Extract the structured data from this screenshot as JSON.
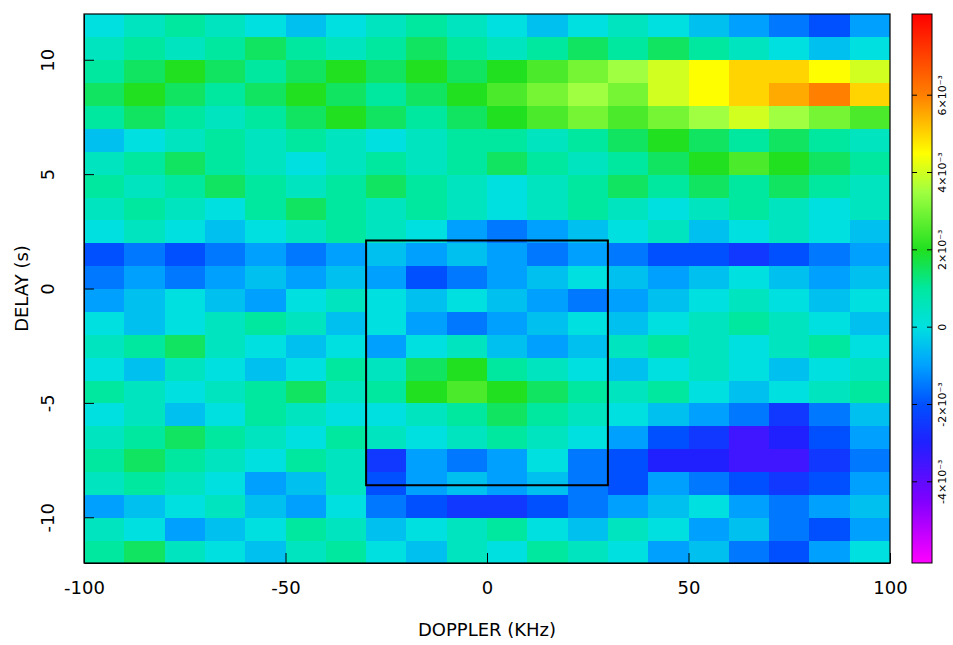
{
  "chart_data": {
    "type": "heatmap",
    "x_label": "DOPPLER (KHz)",
    "y_label": "DELAY (s)",
    "xlim": [
      -100,
      100
    ],
    "ylim": [
      -12,
      12
    ],
    "xticks": [
      -100,
      -50,
      0,
      50,
      100
    ],
    "yticks": [
      -10,
      -5,
      0,
      5,
      10
    ],
    "x": [
      -95,
      -85,
      -75,
      -65,
      -55,
      -45,
      -35,
      -25,
      -15,
      -5,
      5,
      15,
      25,
      35,
      45,
      55,
      65,
      75,
      85,
      95
    ],
    "y": [
      -11.5,
      -10.5,
      -9.5,
      -8.5,
      -7.5,
      -6.5,
      -5.5,
      -4.5,
      -3.5,
      -2.5,
      -1.5,
      -0.5,
      0.5,
      1.5,
      2.5,
      3.5,
      4.5,
      5.5,
      6.5,
      7.5,
      8.5,
      9.5,
      10.5,
      11.5
    ],
    "z": [
      [
        0.001,
        0.0015,
        0.0005,
        0,
        -0.0005,
        0.0005,
        0.001,
        0,
        -0.0005,
        0.0005,
        0,
        0.001,
        0.0005,
        0,
        -0.001,
        -0.0005,
        -0.0015,
        -0.002,
        -0.001,
        0
      ],
      [
        0.0005,
        0,
        -0.001,
        -0.0005,
        0,
        0.001,
        0.0005,
        -0.0005,
        0,
        0.0005,
        0.001,
        0,
        -0.0005,
        0.0005,
        0,
        -0.001,
        -0.0005,
        -0.0015,
        -0.002,
        -0.001
      ],
      [
        -0.001,
        -0.0005,
        0,
        0.0005,
        -0.0005,
        -0.001,
        0,
        -0.0015,
        -0.002,
        -0.0025,
        -0.0025,
        -0.002,
        -0.0015,
        -0.001,
        -0.0005,
        0,
        -0.001,
        -0.0015,
        -0.001,
        -0.0005
      ],
      [
        0.0005,
        0.001,
        0.0005,
        0,
        -0.001,
        -0.0005,
        0.0005,
        -0.002,
        -0.001,
        -0.0005,
        -0.001,
        -0.0005,
        -0.0015,
        -0.002,
        -0.001,
        -0.0015,
        -0.002,
        -0.0025,
        -0.002,
        -0.001
      ],
      [
        0.001,
        0.0015,
        0.001,
        0.0005,
        0,
        0.001,
        0.0005,
        -0.0025,
        -0.001,
        -0.0015,
        -0.001,
        0,
        -0.0015,
        -0.002,
        -0.003,
        -0.003,
        -0.0035,
        -0.0035,
        -0.0025,
        -0.0015
      ],
      [
        0.0005,
        0.001,
        0.0015,
        0.001,
        0.0005,
        0,
        0.001,
        0.0005,
        0,
        0.0005,
        0.001,
        0.0005,
        0,
        -0.001,
        -0.002,
        -0.0025,
        -0.0035,
        -0.003,
        -0.002,
        -0.001
      ],
      [
        0,
        0.0005,
        -0.0005,
        0,
        0.001,
        0.0005,
        0,
        0,
        0.0005,
        0.001,
        0.0015,
        0.001,
        0.0005,
        0,
        -0.0005,
        -0.001,
        -0.0015,
        -0.0025,
        -0.0015,
        -0.0005
      ],
      [
        0.001,
        0.0005,
        0,
        0.0005,
        0.001,
        0.0015,
        0.0005,
        0.001,
        0.002,
        0.0025,
        0.002,
        0.0015,
        0.001,
        0.0005,
        0.001,
        0,
        -0.0005,
        0,
        0.0005,
        0.001
      ],
      [
        0,
        -0.0005,
        0.0005,
        0,
        -0.0005,
        0,
        0.001,
        0.0005,
        0.0015,
        0.002,
        0.001,
        0.0005,
        0,
        -0.0005,
        0,
        0.0005,
        0,
        -0.0005,
        0,
        0.0005
      ],
      [
        0.0005,
        0.001,
        0.0015,
        0.0005,
        0,
        -0.0005,
        0,
        -0.001,
        0,
        0.0005,
        -0.0005,
        -0.001,
        -0.0005,
        0.0005,
        0.001,
        0.0005,
        0,
        0.0005,
        0.001,
        0
      ],
      [
        0,
        -0.0005,
        0,
        0.0005,
        0.001,
        0.0005,
        -0.0005,
        0,
        -0.001,
        -0.0015,
        -0.001,
        -0.0005,
        0,
        -0.0005,
        0,
        0.0005,
        0.001,
        0.0005,
        0,
        -0.0005
      ],
      [
        -0.001,
        -0.0005,
        0,
        -0.0005,
        -0.001,
        0,
        0.0005,
        0,
        -0.0005,
        0,
        -0.0005,
        -0.001,
        -0.0015,
        -0.001,
        -0.0005,
        0,
        0.0005,
        0,
        -0.0005,
        0
      ],
      [
        -0.0015,
        -0.001,
        -0.0015,
        -0.001,
        -0.0005,
        -0.001,
        -0.0005,
        -0.001,
        -0.002,
        -0.0015,
        -0.001,
        -0.0005,
        0,
        -0.0005,
        -0.001,
        -0.0005,
        0,
        -0.0005,
        -0.001,
        -0.0005
      ],
      [
        -0.002,
        -0.0015,
        -0.002,
        -0.0015,
        -0.001,
        -0.0015,
        -0.001,
        -0.0005,
        -0.001,
        -0.0005,
        -0.001,
        -0.0015,
        -0.001,
        -0.0015,
        -0.002,
        -0.002,
        -0.0025,
        -0.002,
        -0.0015,
        -0.001
      ],
      [
        0,
        0.0005,
        0,
        -0.0005,
        0,
        0.0005,
        0.001,
        0.0005,
        0,
        -0.001,
        -0.0015,
        -0.001,
        -0.0005,
        0,
        0.0005,
        -0.0005,
        0,
        0.0005,
        0,
        -0.0005
      ],
      [
        0.0005,
        0.001,
        0.0005,
        0,
        0.001,
        0.0015,
        0.001,
        0.0005,
        0.001,
        0.0005,
        0,
        0.0005,
        0.001,
        0.0005,
        0,
        0.0005,
        0.001,
        0.0005,
        0,
        0.0005
      ],
      [
        0.001,
        0.0005,
        0.001,
        0.0015,
        0.001,
        0.0005,
        0.001,
        0.0015,
        0.001,
        0.0005,
        0,
        0.0005,
        0.001,
        0.0015,
        0.001,
        0.0015,
        0.001,
        0.0015,
        0.001,
        0.0005
      ],
      [
        0.0005,
        0.001,
        0.0015,
        0.001,
        0.0005,
        0,
        0.0005,
        0.001,
        0.0005,
        0.001,
        0.0015,
        0.001,
        0.0005,
        0.001,
        0.0015,
        0.002,
        0.0025,
        0.002,
        0.0015,
        0.001
      ],
      [
        -0.0005,
        0,
        0.0005,
        0.001,
        0.0005,
        0.001,
        0.0005,
        0,
        0.0005,
        0.001,
        0.001,
        0.0005,
        0.001,
        0.0015,
        0.002,
        0.0015,
        0.001,
        0.0015,
        0.001,
        0.0005
      ],
      [
        0.001,
        0.0015,
        0.001,
        0.0005,
        0.001,
        0.0015,
        0.002,
        0.0015,
        0.001,
        0.0015,
        0.002,
        0.0025,
        0.003,
        0.0025,
        0.003,
        0.0035,
        0.004,
        0.0035,
        0.003,
        0.0025
      ],
      [
        0.0015,
        0.002,
        0.0015,
        0.001,
        0.0015,
        0.002,
        0.0015,
        0.001,
        0.0015,
        0.002,
        0.0025,
        0.003,
        0.0035,
        0.003,
        0.004,
        0.0045,
        0.005,
        0.0055,
        0.006,
        0.005
      ],
      [
        0.001,
        0.0015,
        0.002,
        0.0015,
        0.001,
        0.0015,
        0.002,
        0.0015,
        0.002,
        0.0015,
        0.002,
        0.0025,
        0.003,
        0.0035,
        0.004,
        0.0045,
        0.005,
        0.005,
        0.0045,
        0.004
      ],
      [
        0.0005,
        0.001,
        0.0005,
        0.001,
        0.0015,
        0.001,
        0.0005,
        0.001,
        0.0015,
        0.001,
        0.0005,
        0.001,
        0.0015,
        0.001,
        0.0015,
        0.001,
        0.0005,
        0,
        -0.0005,
        0
      ],
      [
        0,
        0.0005,
        0.001,
        0.0005,
        0,
        -0.0005,
        0,
        0.0005,
        0.001,
        0.0005,
        0,
        -0.0005,
        0,
        0.0005,
        0,
        -0.0005,
        -0.001,
        -0.0015,
        -0.002,
        -0.001
      ]
    ],
    "colorbar": {
      "range": [
        -0.0061,
        0.0081
      ],
      "ticks": [
        {
          "value": -0.004,
          "label": "-4×10⁻³"
        },
        {
          "value": -0.002,
          "label": "-2×10⁻³"
        },
        0,
        {
          "value": 0.002,
          "label": "2×10⁻³"
        },
        {
          "value": 0.004,
          "label": "4×10⁻³"
        },
        {
          "value": 0.006,
          "label": "6×10⁻³"
        }
      ]
    },
    "box": {
      "x": [
        -30,
        30
      ],
      "y": [
        -8.6,
        2.1
      ]
    }
  }
}
